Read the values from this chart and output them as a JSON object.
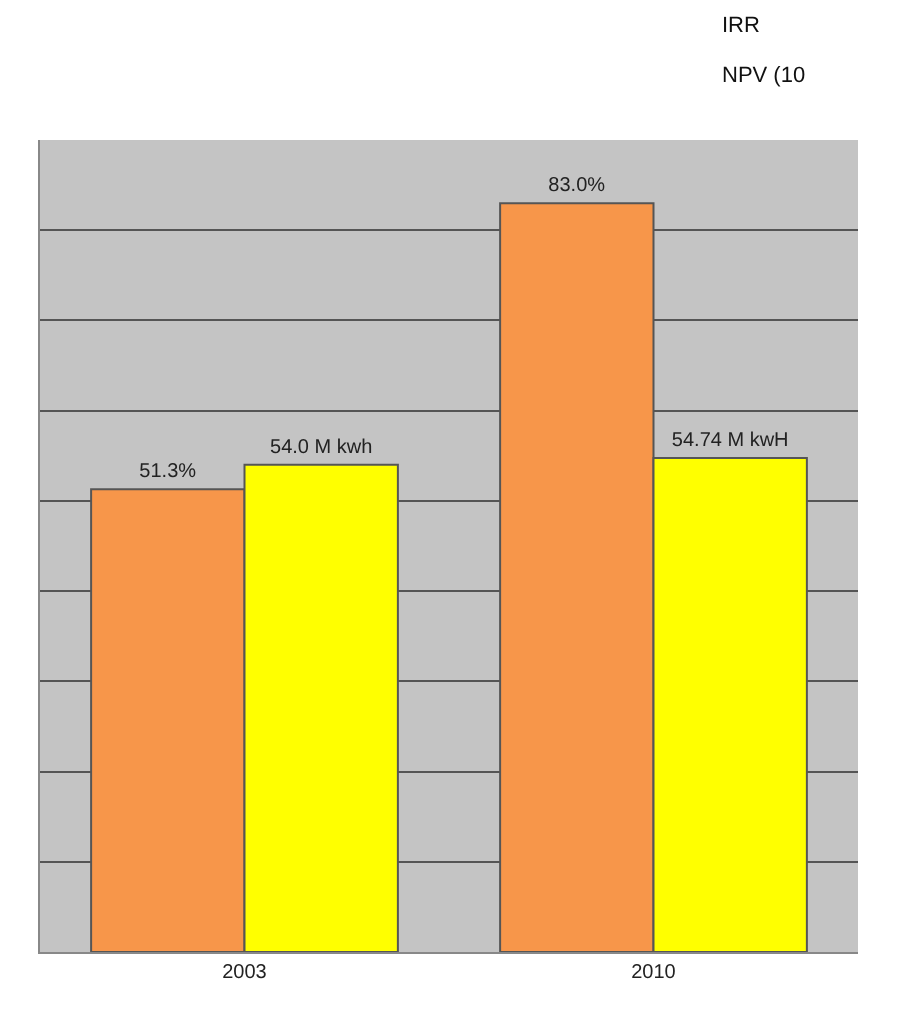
{
  "chart_data": {
    "type": "bar",
    "categories": [
      "2003",
      "2010"
    ],
    "series": [
      {
        "color": "#f7964a",
        "values": [
          51.3,
          83.0
        ],
        "value_labels": [
          "51.3%",
          "83.0%"
        ]
      },
      {
        "color": "#ffff00",
        "values": [
          54.0,
          54.74
        ],
        "value_labels": [
          "54.0 M kwh",
          "54.74 M kwH"
        ]
      }
    ],
    "ylim": [
      0,
      90
    ],
    "yticks": [
      {
        "value": 0,
        "label": null
      },
      {
        "value": 10,
        "label": null
      },
      {
        "value": 20,
        "label": null
      },
      {
        "value": 30,
        "label": null
      },
      {
        "value": 40,
        "label": null
      },
      {
        "value": 50,
        "label": null
      },
      {
        "value": 60,
        "label": null
      },
      {
        "value": 70,
        "label": null
      },
      {
        "value": 80,
        "label": null
      },
      {
        "value": 90,
        "label": null
      }
    ],
    "grid": "y",
    "tick_labels": "x",
    "annotations": [
      "IRR",
      "NPV (10"
    ]
  }
}
